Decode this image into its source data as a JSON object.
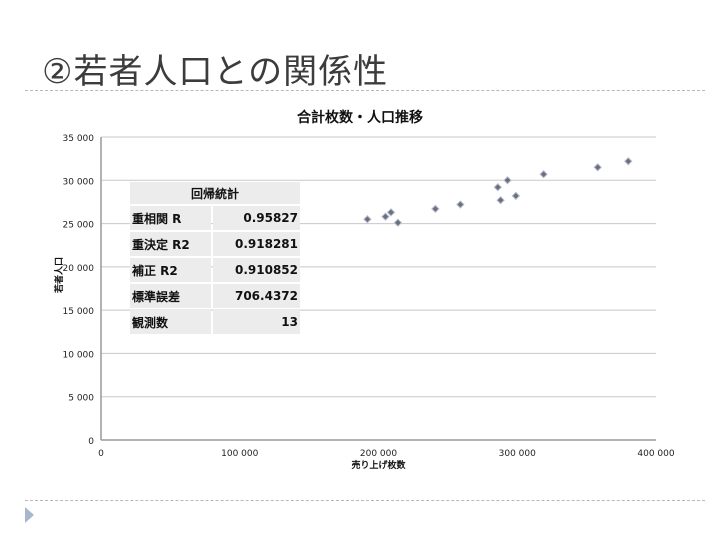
{
  "slide": {
    "title": "②若者人口との関係性"
  },
  "regression_table": {
    "header": "回帰統計",
    "rows": [
      {
        "label": "重相関 R",
        "value": "0.95827"
      },
      {
        "label": "重決定 R2",
        "value": "0.918281"
      },
      {
        "label": "補正 R2",
        "value": "0.910852"
      },
      {
        "label": "標準誤差",
        "value": "706.4372"
      },
      {
        "label": "観測数",
        "value": "13"
      }
    ]
  },
  "chart_data": {
    "type": "scatter",
    "title": "合計枚数・人口推移",
    "xlabel": "売り上げ枚数",
    "ylabel": "若者人口",
    "xlim": [
      0,
      400000
    ],
    "ylim": [
      0,
      35000
    ],
    "xticks": [
      "0",
      "100 000",
      "200 000",
      "300 000",
      "400 000"
    ],
    "yticks": [
      "0",
      "5 000",
      "10 000",
      "15 000",
      "20 000",
      "25 000",
      "30 000",
      "35 000"
    ],
    "grid": "horizontal",
    "marker_color": "#6a6f80",
    "points": [
      {
        "x": 192000,
        "y": 25500
      },
      {
        "x": 205000,
        "y": 25800
      },
      {
        "x": 209000,
        "y": 26300
      },
      {
        "x": 214000,
        "y": 25100
      },
      {
        "x": 241000,
        "y": 26700
      },
      {
        "x": 259000,
        "y": 27200
      },
      {
        "x": 286000,
        "y": 29200
      },
      {
        "x": 293000,
        "y": 30000
      },
      {
        "x": 288000,
        "y": 27700
      },
      {
        "x": 299000,
        "y": 28200
      },
      {
        "x": 319000,
        "y": 30700
      },
      {
        "x": 358000,
        "y": 31500
      },
      {
        "x": 380000,
        "y": 32200
      }
    ]
  }
}
